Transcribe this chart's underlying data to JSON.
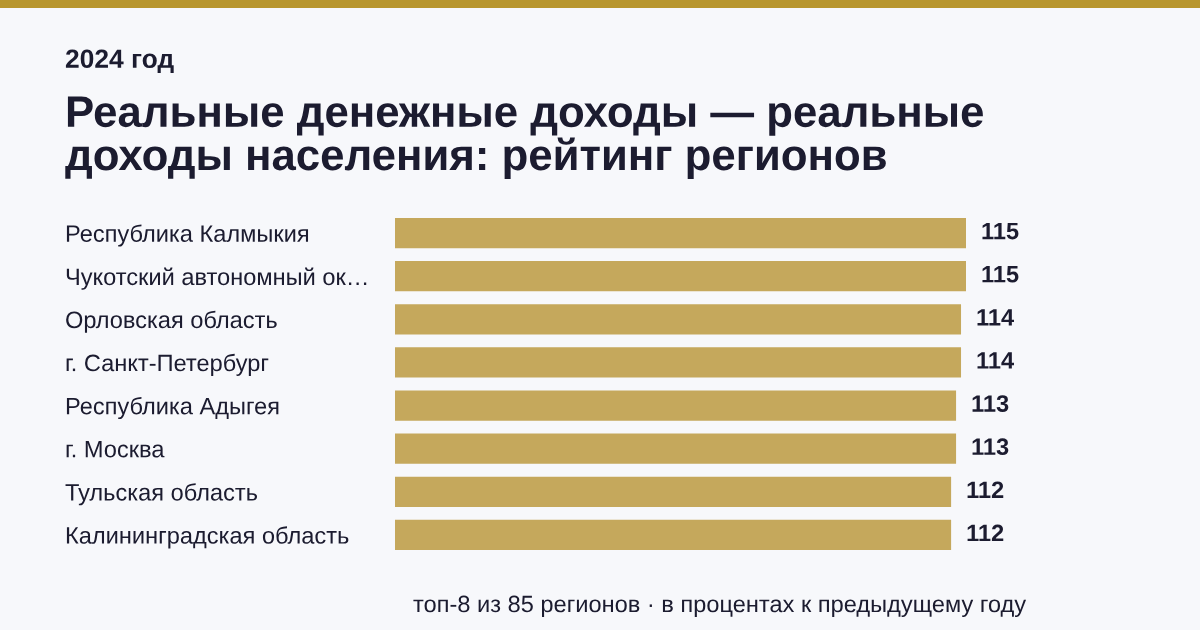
{
  "chart_data": {
    "type": "bar",
    "orientation": "horizontal",
    "subtitle": "2024 год",
    "title": "Реальные денежные доходы — реальные\nдоходы населения: рейтинг регионов",
    "categories": [
      "Республика Калмыкия",
      "Чукотский автономный ок…",
      "Орловская область",
      "г. Санкт-Петербург",
      "Республика Адыгея",
      "г. Москва",
      "Тульская область",
      "Калининградская область"
    ],
    "values": [
      115,
      115,
      114,
      114,
      113,
      113,
      112,
      112
    ],
    "color": "#c5a85c",
    "data_labels": true,
    "tick_labels": "y",
    "annotations": [
      "топ-8 из 85 регионов · в процентах к предыдущему году"
    ]
  }
}
